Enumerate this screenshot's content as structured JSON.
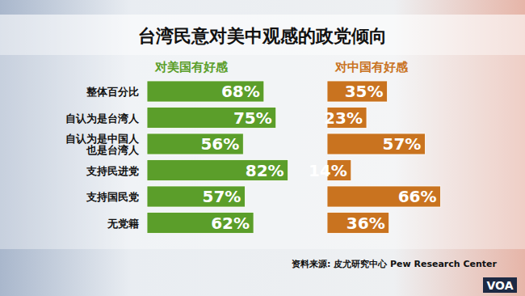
{
  "chart_data": {
    "type": "bar",
    "orientation": "horizontal",
    "title": "台湾民意对美中观感的政党倾向",
    "categories": [
      "整体百分比",
      "自认为是台湾人",
      "自认为是中国人\n也是台湾人",
      "支持民进党",
      "支持国民党",
      "无党籍"
    ],
    "series": [
      {
        "name": "对美国有好感",
        "color": "#5b9e2a",
        "values": [
          68,
          75,
          56,
          82,
          57,
          62
        ],
        "value_labels": [
          "68%",
          "75%",
          "56%",
          "82%",
          "57%",
          "62%"
        ]
      },
      {
        "name": "对中国有好感",
        "color": "#c9731f",
        "values": [
          35,
          23,
          57,
          14,
          66,
          36
        ],
        "value_labels": [
          "35%",
          "23%",
          "57%",
          "14%",
          "66%",
          "36%"
        ]
      }
    ],
    "xlim": [
      0,
      100
    ],
    "data_labels": true,
    "tick_labels": "y",
    "grid": false,
    "annotations": [
      "资料来源: 皮尤研究中心 Pew Research Center",
      "VOA"
    ]
  }
}
